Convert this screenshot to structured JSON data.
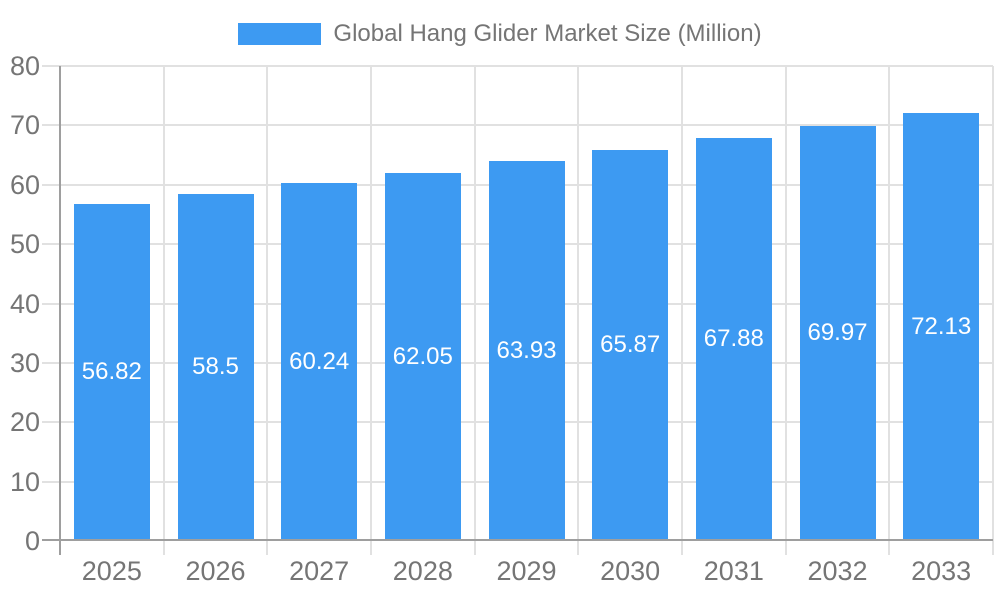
{
  "legend": {
    "label": "Global Hang Glider Market Size (Million)"
  },
  "colors": {
    "bar": "#3d9af2",
    "grid": "#e1e1e1",
    "axis_line": "#9e9e9e",
    "tick_label": "#757575",
    "annotation": "#ffffff",
    "background": "#ffffff"
  },
  "chart_data": {
    "type": "bar",
    "title": "Global Hang Glider Market Size (Million)",
    "categories": [
      "2025",
      "2026",
      "2027",
      "2028",
      "2029",
      "2030",
      "2031",
      "2032",
      "2033"
    ],
    "values": [
      56.82,
      58.5,
      60.24,
      62.05,
      63.93,
      65.87,
      67.88,
      69.97,
      72.13
    ],
    "value_labels": [
      "56.82",
      "58.5",
      "60.24",
      "62.05",
      "63.93",
      "65.87",
      "67.88",
      "69.97",
      "72.13"
    ],
    "xlabel": "",
    "ylabel": "",
    "ylim": [
      0,
      80
    ],
    "ytick_step": 10,
    "yticks": [
      0,
      10,
      20,
      30,
      40,
      50,
      60,
      70,
      80
    ],
    "grid": true,
    "legend_position": "top",
    "annotation_position": "inside-center"
  }
}
